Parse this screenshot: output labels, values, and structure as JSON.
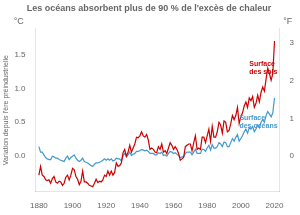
{
  "chart_data": {
    "type": "line",
    "title": "Les océans absorbent plus de 90 % de l'excès de chaleur",
    "ylabel": "Variation depuis l'ère préindustrielle",
    "yunit": "°C",
    "y2unit": "°F",
    "grid": false,
    "annotations": [
      {
        "text": "Surface\ndes sols",
        "x": 2005,
        "y": 1.3,
        "color": "#cc0000"
      },
      {
        "text": "Surface\ndes océans",
        "x": 2001,
        "y": 0.5,
        "color": "#4499cc"
      }
    ],
    "xlim": [
      1878,
      2023
    ],
    "xticks": [
      1880,
      1900,
      1920,
      1940,
      1960,
      1980,
      2000,
      2020
    ],
    "ylim": [
      -0.52,
      1.88
    ],
    "yticks": [
      {
        "value": 0,
        "label": "0.0"
      },
      0.5,
      {
        "value": 1.0,
        "label": "1.0"
      },
      1.5
    ],
    "y2lim": [
      -0.94,
      3.38
    ],
    "y2ticks": [
      0,
      1,
      2,
      3
    ],
    "x": [
      1880,
      1881,
      1882,
      1883,
      1884,
      1885,
      1886,
      1887,
      1888,
      1889,
      1890,
      1891,
      1892,
      1893,
      1894,
      1895,
      1896,
      1897,
      1898,
      1899,
      1900,
      1901,
      1902,
      1903,
      1904,
      1905,
      1906,
      1907,
      1908,
      1909,
      1910,
      1911,
      1912,
      1913,
      1914,
      1915,
      1916,
      1917,
      1918,
      1919,
      1920,
      1921,
      1922,
      1923,
      1924,
      1925,
      1926,
      1927,
      1928,
      1929,
      1930,
      1931,
      1932,
      1933,
      1934,
      1935,
      1936,
      1937,
      1938,
      1939,
      1940,
      1941,
      1942,
      1943,
      1944,
      1945,
      1946,
      1947,
      1948,
      1949,
      1950,
      1951,
      1952,
      1953,
      1954,
      1955,
      1956,
      1957,
      1958,
      1959,
      1960,
      1961,
      1962,
      1963,
      1964,
      1965,
      1966,
      1967,
      1968,
      1969,
      1970,
      1971,
      1972,
      1973,
      1974,
      1975,
      1976,
      1977,
      1978,
      1979,
      1980,
      1981,
      1982,
      1983,
      1984,
      1985,
      1986,
      1987,
      1988,
      1989,
      1990,
      1991,
      1992,
      1993,
      1994,
      1995,
      1996,
      1997,
      1998,
      1999,
      2000,
      2001,
      2002,
      2003,
      2004,
      2005,
      2006,
      2007,
      2008,
      2009,
      2010,
      2011,
      2012,
      2013,
      2014,
      2015,
      2016,
      2017,
      2018,
      2019,
      2020
    ],
    "series": [
      {
        "color": "#cc0000",
        "values": [
          -0.28,
          -0.15,
          -0.28,
          -0.3,
          -0.35,
          -0.36,
          -0.35,
          -0.4,
          -0.33,
          -0.3,
          -0.38,
          -0.4,
          -0.37,
          -0.38,
          -0.43,
          -0.4,
          -0.31,
          -0.28,
          -0.35,
          -0.28,
          -0.18,
          -0.2,
          -0.3,
          -0.34,
          -0.42,
          -0.37,
          -0.22,
          -0.38,
          -0.38,
          -0.4,
          -0.43,
          -0.44,
          -0.45,
          -0.4,
          -0.34,
          -0.39,
          -0.37,
          -0.38,
          -0.35,
          -0.28,
          -0.3,
          -0.22,
          -0.28,
          -0.22,
          -0.28,
          -0.24,
          -0.1,
          -0.15,
          -0.14,
          -0.1,
          0.05,
          0.1,
          0.0,
          0.06,
          0.16,
          0.06,
          0.12,
          0.18,
          0.28,
          0.27,
          0.3,
          0.36,
          0.3,
          0.28,
          0.32,
          0.24,
          0.1,
          0.12,
          0.1,
          0.06,
          0.05,
          0.14,
          0.1,
          0.18,
          0.06,
          0.08,
          0.04,
          0.12,
          0.2,
          0.16,
          0.1,
          0.14,
          0.1,
          0.04,
          -0.06,
          -0.04,
          -0.02,
          0.14,
          0.16,
          0.18,
          0.18,
          0.08,
          0.2,
          0.3,
          0.1,
          0.12,
          0.1,
          0.28,
          0.28,
          0.2,
          0.3,
          0.4,
          0.22,
          0.44,
          0.28,
          0.28,
          0.36,
          0.5,
          0.46,
          0.34,
          0.52,
          0.5,
          0.36,
          0.38,
          0.48,
          0.6,
          0.54,
          0.6,
          0.72,
          0.48,
          0.58,
          0.64,
          0.74,
          0.8,
          0.72,
          0.86,
          0.82,
          0.88,
          0.72,
          0.78,
          0.9,
          0.8,
          0.94,
          1.02,
          0.96,
          1.14,
          1.3,
          1.22,
          1.12,
          1.22,
          1.7
        ]
      },
      {
        "color": "#4499cc",
        "values": [
          0.14,
          0.06,
          0.06,
          0.02,
          -0.02,
          -0.04,
          -0.05,
          -0.05,
          0.0,
          -0.01,
          -0.03,
          -0.03,
          -0.05,
          -0.06,
          -0.07,
          -0.08,
          -0.03,
          0.0,
          -0.05,
          -0.02,
          0.0,
          0.02,
          -0.03,
          -0.06,
          -0.08,
          -0.06,
          -0.03,
          -0.08,
          -0.09,
          -0.1,
          -0.12,
          -0.14,
          -0.15,
          -0.12,
          -0.1,
          -0.1,
          -0.09,
          -0.08,
          -0.06,
          -0.04,
          -0.06,
          -0.04,
          -0.06,
          -0.04,
          -0.07,
          -0.06,
          -0.03,
          -0.04,
          -0.04,
          -0.07,
          0.01,
          0.04,
          -0.01,
          0.02,
          0.06,
          0.01,
          0.03,
          0.04,
          0.07,
          0.07,
          0.08,
          0.1,
          0.09,
          0.08,
          0.09,
          0.07,
          0.04,
          0.04,
          0.04,
          0.02,
          0.02,
          0.05,
          0.04,
          0.06,
          0.01,
          0.02,
          0.0,
          0.04,
          0.07,
          0.06,
          0.04,
          0.05,
          0.03,
          0.01,
          -0.02,
          -0.01,
          -0.01,
          0.04,
          0.06,
          0.06,
          0.06,
          0.02,
          0.06,
          0.1,
          0.04,
          0.04,
          0.04,
          0.1,
          0.1,
          0.07,
          0.12,
          0.16,
          0.09,
          0.17,
          0.12,
          0.12,
          0.14,
          0.2,
          0.18,
          0.14,
          0.21,
          0.2,
          0.14,
          0.14,
          0.2,
          0.26,
          0.22,
          0.28,
          0.32,
          0.22,
          0.26,
          0.3,
          0.36,
          0.4,
          0.34,
          0.42,
          0.4,
          0.44,
          0.36,
          0.4,
          0.46,
          0.42,
          0.5,
          0.54,
          0.5,
          0.6,
          0.66,
          0.62,
          0.58,
          0.64,
          0.86
        ]
      }
    ]
  }
}
